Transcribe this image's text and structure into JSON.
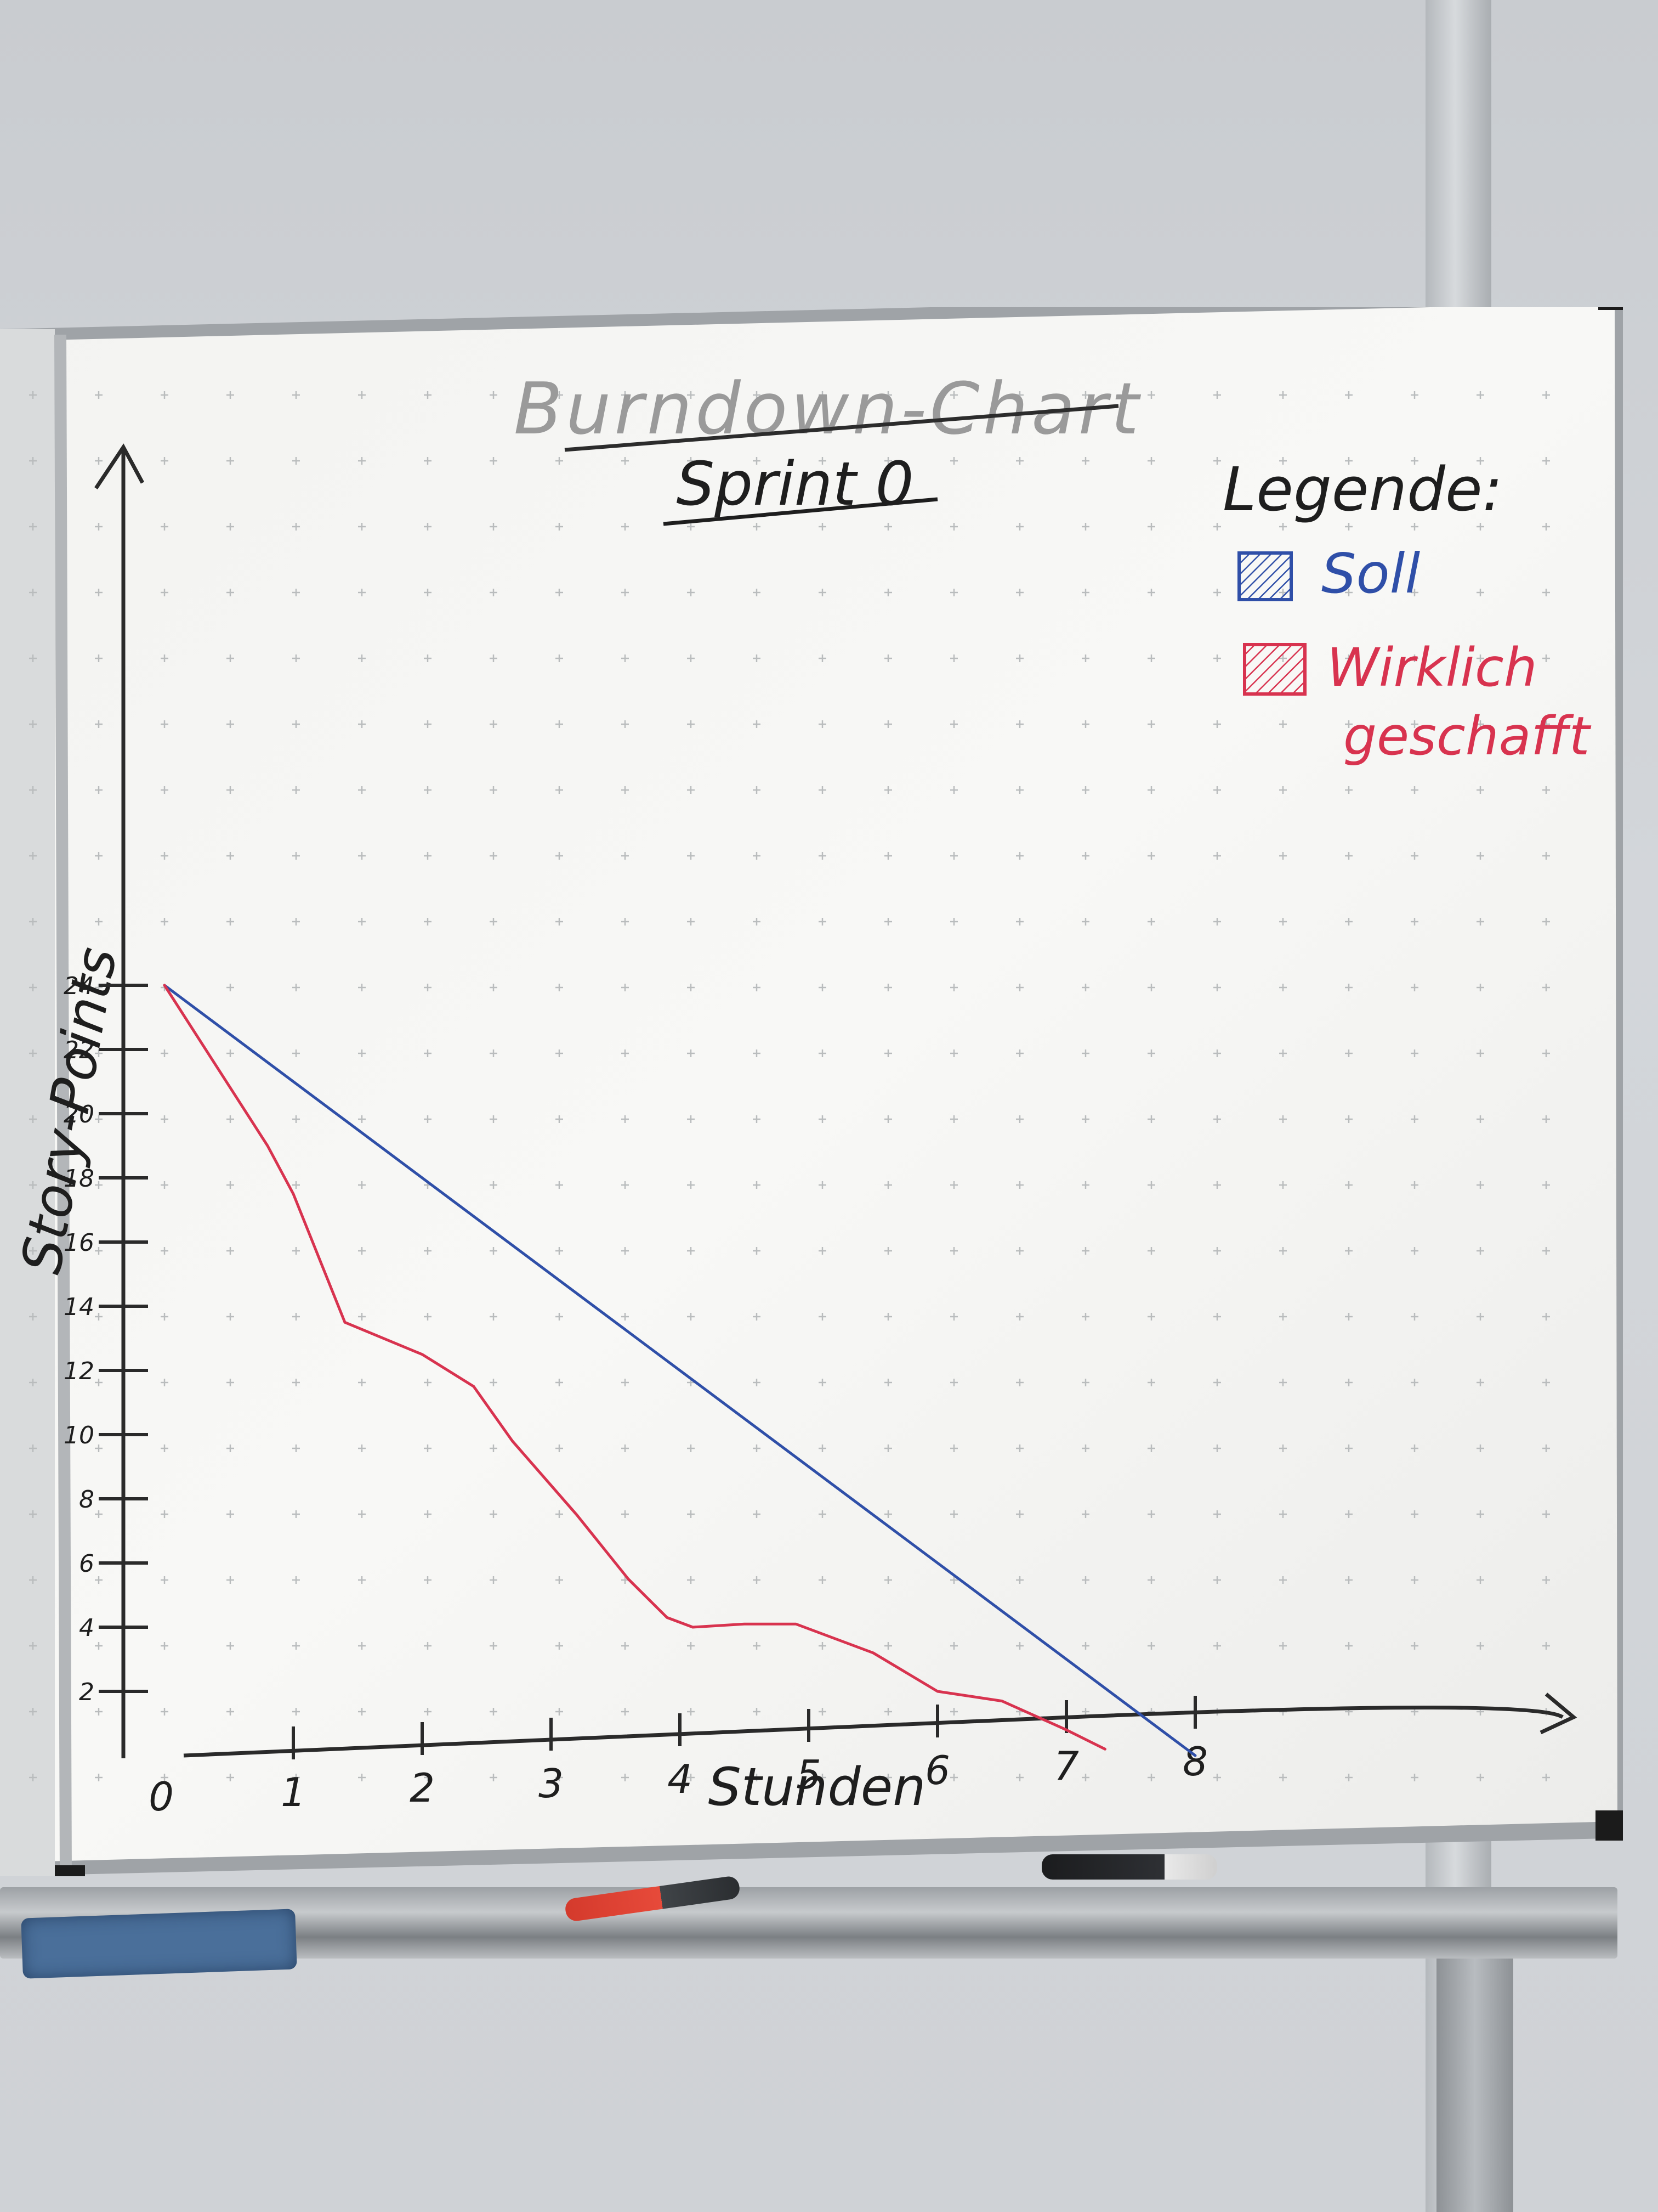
{
  "chart_data": {
    "type": "line",
    "title": "Burndown-Chart",
    "subtitle": "Sprint 0",
    "xlabel": "Stunden",
    "ylabel": "Story-Points",
    "xlim": [
      0,
      8.4
    ],
    "ylim": [
      0,
      24
    ],
    "x_ticks": [
      {
        "value": 0,
        "label": "0"
      },
      {
        "value": 1,
        "label": "1"
      },
      {
        "value": 2,
        "label": "2"
      },
      {
        "value": 3,
        "label": "3"
      },
      {
        "value": 4,
        "label": "4"
      },
      {
        "value": 5,
        "label": "5"
      },
      {
        "value": 6,
        "label": "6"
      },
      {
        "value": 7,
        "label": "7"
      },
      {
        "value": 8,
        "label": "8"
      }
    ],
    "y_ticks": [
      {
        "value": 2,
        "label": "2"
      },
      {
        "value": 4,
        "label": "4"
      },
      {
        "value": 6,
        "label": "6"
      },
      {
        "value": 8,
        "label": "8"
      },
      {
        "value": 10,
        "label": "10"
      },
      {
        "value": 12,
        "label": "12"
      },
      {
        "value": 14,
        "label": "14"
      },
      {
        "value": 16,
        "label": "16"
      },
      {
        "value": 18,
        "label": "18"
      },
      {
        "value": 20,
        "label": "20"
      },
      {
        "value": 22,
        "label": "22"
      },
      {
        "value": 24,
        "label": "24"
      }
    ],
    "legend_title": "Legende:",
    "legend_position": "top-right",
    "series": [
      {
        "name": "Soll",
        "color": "#2f4fa8",
        "x": [
          0,
          8
        ],
        "y": [
          24,
          0
        ]
      },
      {
        "name": "Wirklich geschafft",
        "color": "#d8334f",
        "x": [
          0,
          0.4,
          0.8,
          1.0,
          1.2,
          1.4,
          2.0,
          2.4,
          2.7,
          3.2,
          3.6,
          3.9,
          4.1,
          4.5,
          4.9,
          5.5,
          6.0,
          6.5,
          7.0,
          7.3
        ],
        "y": [
          24,
          21.5,
          19,
          17.5,
          15.5,
          13.5,
          12.5,
          11.5,
          9.8,
          7.5,
          5.5,
          4.3,
          4.0,
          4.1,
          4.1,
          3.2,
          2.0,
          1.7,
          0.8,
          0.2
        ]
      }
    ],
    "grid": true
  }
}
